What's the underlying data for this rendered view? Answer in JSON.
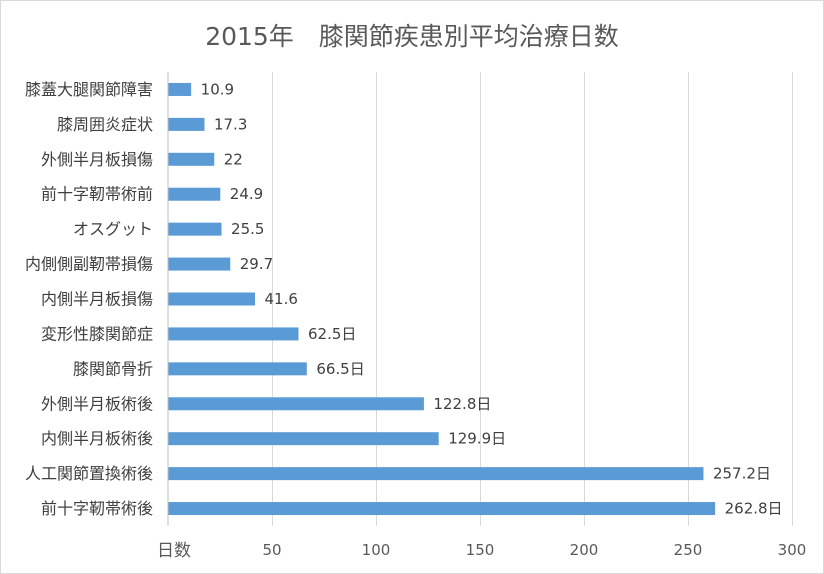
{
  "chart_data": {
    "type": "bar",
    "orientation": "horizontal",
    "title": "2015年　膝関節疾患別平均治療日数",
    "xlabel": "日数",
    "ylabel": "",
    "categories": [
      "膝蓋大腿関節障害",
      "膝周囲炎症状",
      "外側半月板損傷",
      "前十字靭帯術前",
      "オスグット",
      "内側側副靭帯損傷",
      "内側半月板損傷",
      "変形性膝関節症",
      "膝関節骨折",
      "外側半月板術後",
      "内側半月板術後",
      "人工関節置換術後",
      "前十字靭帯術後"
    ],
    "values": [
      10.9,
      17.3,
      22,
      24.9,
      25.5,
      29.7,
      41.6,
      62.5,
      66.5,
      122.8,
      129.9,
      257.2,
      262.8
    ],
    "data_labels": [
      "10.9",
      "17.3",
      "22",
      "24.9",
      "25.5",
      "29.7",
      "41.6",
      "62.5日",
      "66.5日",
      "122.8日",
      "129.9日",
      "257.2日",
      "262.8日"
    ],
    "xlim": [
      0,
      300
    ],
    "x_ticks": [
      50,
      100,
      150,
      200,
      250,
      300
    ],
    "grid": true,
    "legend": "none",
    "colors": {
      "bar": "#5b9bd5",
      "grid": "#d9d9d9",
      "axis": "#bfbfbf",
      "border": "#d9d9d9"
    }
  }
}
